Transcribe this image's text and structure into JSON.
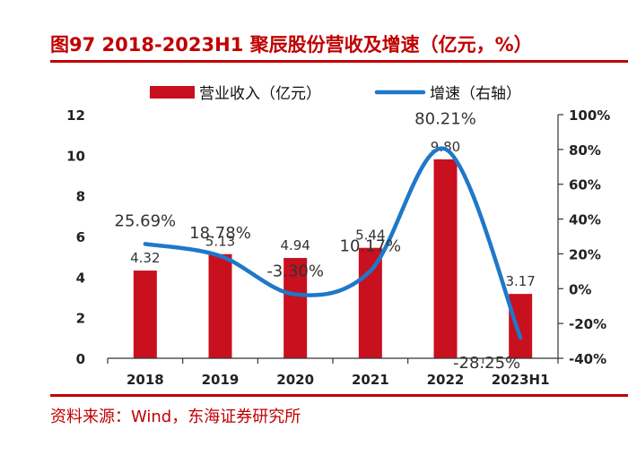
{
  "figure": {
    "title": "图97  2018-2023H1 聚辰股份营收及增速（亿元，%）",
    "source": "资料来源：Wind，东海证券研究所"
  },
  "colors": {
    "accent": "#c00000",
    "bar": "#c8101e",
    "line": "#1f78c8"
  },
  "chart_data": {
    "type": "bar",
    "categories": [
      "2018",
      "2019",
      "2020",
      "2021",
      "2022",
      "2023H1"
    ],
    "series": [
      {
        "name": "营业收入（亿元）",
        "type": "bar",
        "axis": "left",
        "values": [
          4.32,
          5.13,
          4.94,
          5.44,
          9.8,
          3.17
        ],
        "labels": [
          "4.32",
          "5.13",
          "4.94",
          "5.44",
          "9.80",
          "3.17"
        ]
      },
      {
        "name": "增速（右轴）",
        "type": "line",
        "axis": "right",
        "values": [
          25.69,
          18.78,
          -3.3,
          10.17,
          80.21,
          -28.25
        ],
        "labels": [
          "25.69%",
          "18.78%",
          "-3.30%",
          "10.17%",
          "80.21%",
          "-28.25%"
        ]
      }
    ],
    "left_axis": {
      "min": 0,
      "max": 12,
      "ticks": [
        "0",
        "2",
        "4",
        "6",
        "8",
        "10",
        "12"
      ]
    },
    "right_axis": {
      "min": -40,
      "max": 100,
      "ticks": [
        "-40%",
        "-20%",
        "0%",
        "20%",
        "40%",
        "60%",
        "80%",
        "100%"
      ]
    },
    "grid": false,
    "legend": "top-center"
  }
}
